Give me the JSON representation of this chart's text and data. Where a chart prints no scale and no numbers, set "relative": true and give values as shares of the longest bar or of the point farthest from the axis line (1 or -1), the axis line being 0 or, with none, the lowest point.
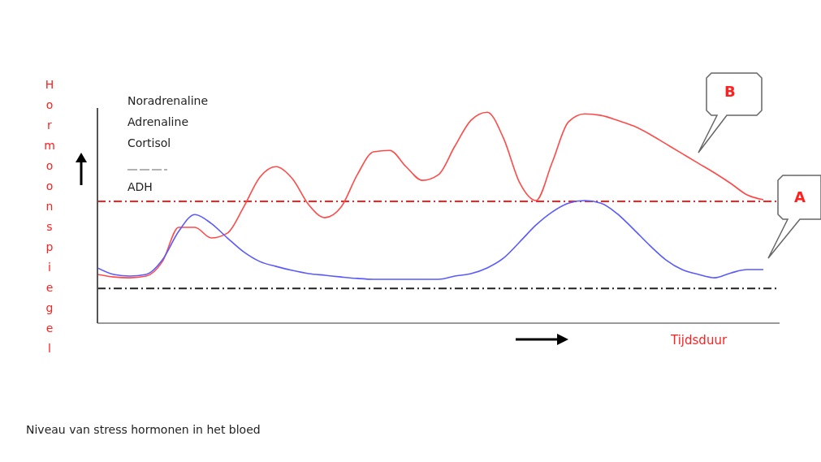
{
  "chart_data": {
    "type": "line",
    "relative": true,
    "ylabel": "Hormoonspiegel",
    "xlabel": "Tijdsduur",
    "categories": [
      null,
      null,
      null,
      null,
      null,
      null,
      null,
      null,
      null,
      null,
      null,
      null,
      null,
      null,
      null,
      null,
      null,
      null,
      null,
      null,
      null,
      null,
      null,
      null,
      null,
      null,
      null,
      null,
      null,
      null,
      null,
      null,
      null,
      null,
      null,
      null,
      null,
      null,
      null,
      null,
      null,
      null,
      null
    ],
    "series": [
      {
        "color": "#ff4a4a",
        "values": [
          0.231,
          0.219,
          0.215,
          0.223,
          0.292,
          0.454,
          0.454,
          0.404,
          0.427,
          0.55,
          0.692,
          0.742,
          0.685,
          0.562,
          0.5,
          0.55,
          0.704,
          0.812,
          0.819,
          0.742,
          0.677,
          0.704,
          0.838,
          0.962,
          1.0,
          0.877,
          0.665,
          0.581,
          0.762,
          0.954,
          0.992,
          0.985,
          0.962,
          0.935,
          0.896,
          0.85,
          0.804,
          0.758,
          0.712,
          0.662,
          0.608,
          0.585,
          null
        ]
      },
      {
        "color": "#5a5aff",
        "values": [
          0.262,
          0.231,
          0.223,
          0.231,
          0.3,
          0.435,
          0.515,
          0.473,
          0.404,
          0.338,
          0.292,
          0.269,
          0.25,
          0.235,
          0.227,
          0.219,
          0.212,
          0.208,
          0.208,
          0.208,
          0.208,
          0.208,
          0.223,
          0.235,
          0.262,
          0.308,
          0.385,
          0.465,
          0.527,
          0.569,
          0.581,
          0.569,
          0.519,
          0.446,
          0.369,
          0.3,
          0.254,
          0.231,
          0.215,
          0.238,
          0.254,
          0.254,
          null
        ]
      }
    ],
    "ref_lines": [
      {
        "axis": "y",
        "value": 0.577,
        "color": "#ff2020",
        "line_style": "dashed"
      },
      {
        "axis": "y",
        "value": 0.165,
        "color": "#222222",
        "line_style": "dashed"
      }
    ],
    "annotations": [
      "Noradrenaline",
      "Adrenaline",
      "Cortisol",
      "ADH",
      "B",
      "A",
      "Niveau van stress hormonen in het bloed"
    ],
    "marker": "none",
    "line_style": "solid"
  }
}
